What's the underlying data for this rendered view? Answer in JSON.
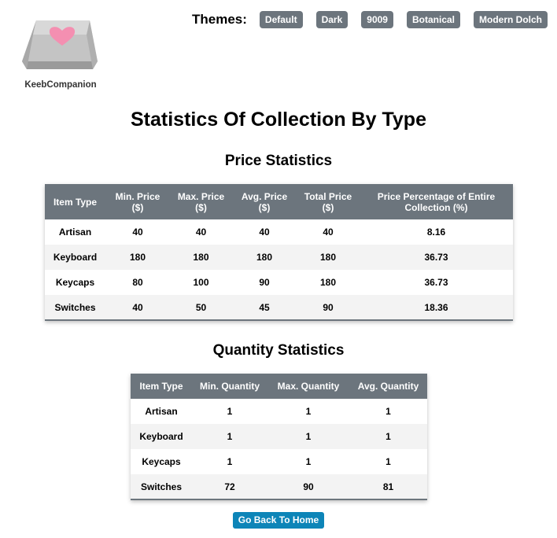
{
  "logo": {
    "text": "KeebCompanion"
  },
  "themes": {
    "label": "Themes:",
    "buttons": [
      "Default",
      "Dark",
      "9009",
      "Botanical",
      "Modern Dolch"
    ]
  },
  "page_title": "Statistics Of Collection By Type",
  "price_stats": {
    "heading": "Price Statistics",
    "columns": [
      "Item Type",
      "Min. Price ($)",
      "Max. Price ($)",
      "Avg. Price ($)",
      "Total Price ($)",
      "Price Percentage of Entire Collection (%)"
    ],
    "rows": [
      [
        "Artisan",
        "40",
        "40",
        "40",
        "40",
        "8.16"
      ],
      [
        "Keyboard",
        "180",
        "180",
        "180",
        "180",
        "36.73"
      ],
      [
        "Keycaps",
        "80",
        "100",
        "90",
        "180",
        "36.73"
      ],
      [
        "Switches",
        "40",
        "50",
        "45",
        "90",
        "18.36"
      ]
    ]
  },
  "quantity_stats": {
    "heading": "Quantity Statistics",
    "columns": [
      "Item Type",
      "Min. Quantity",
      "Max. Quantity",
      "Avg. Quantity"
    ],
    "rows": [
      [
        "Artisan",
        "1",
        "1",
        "1"
      ],
      [
        "Keyboard",
        "1",
        "1",
        "1"
      ],
      [
        "Keycaps",
        "1",
        "1",
        "1"
      ],
      [
        "Switches",
        "72",
        "90",
        "81"
      ]
    ]
  },
  "home_button": "Go Back To Home",
  "colors": {
    "table_header": "#6c757d",
    "theme_button": "#6c757d",
    "home_button": "#0d85b8",
    "logo_heart": "#f48fb1"
  }
}
